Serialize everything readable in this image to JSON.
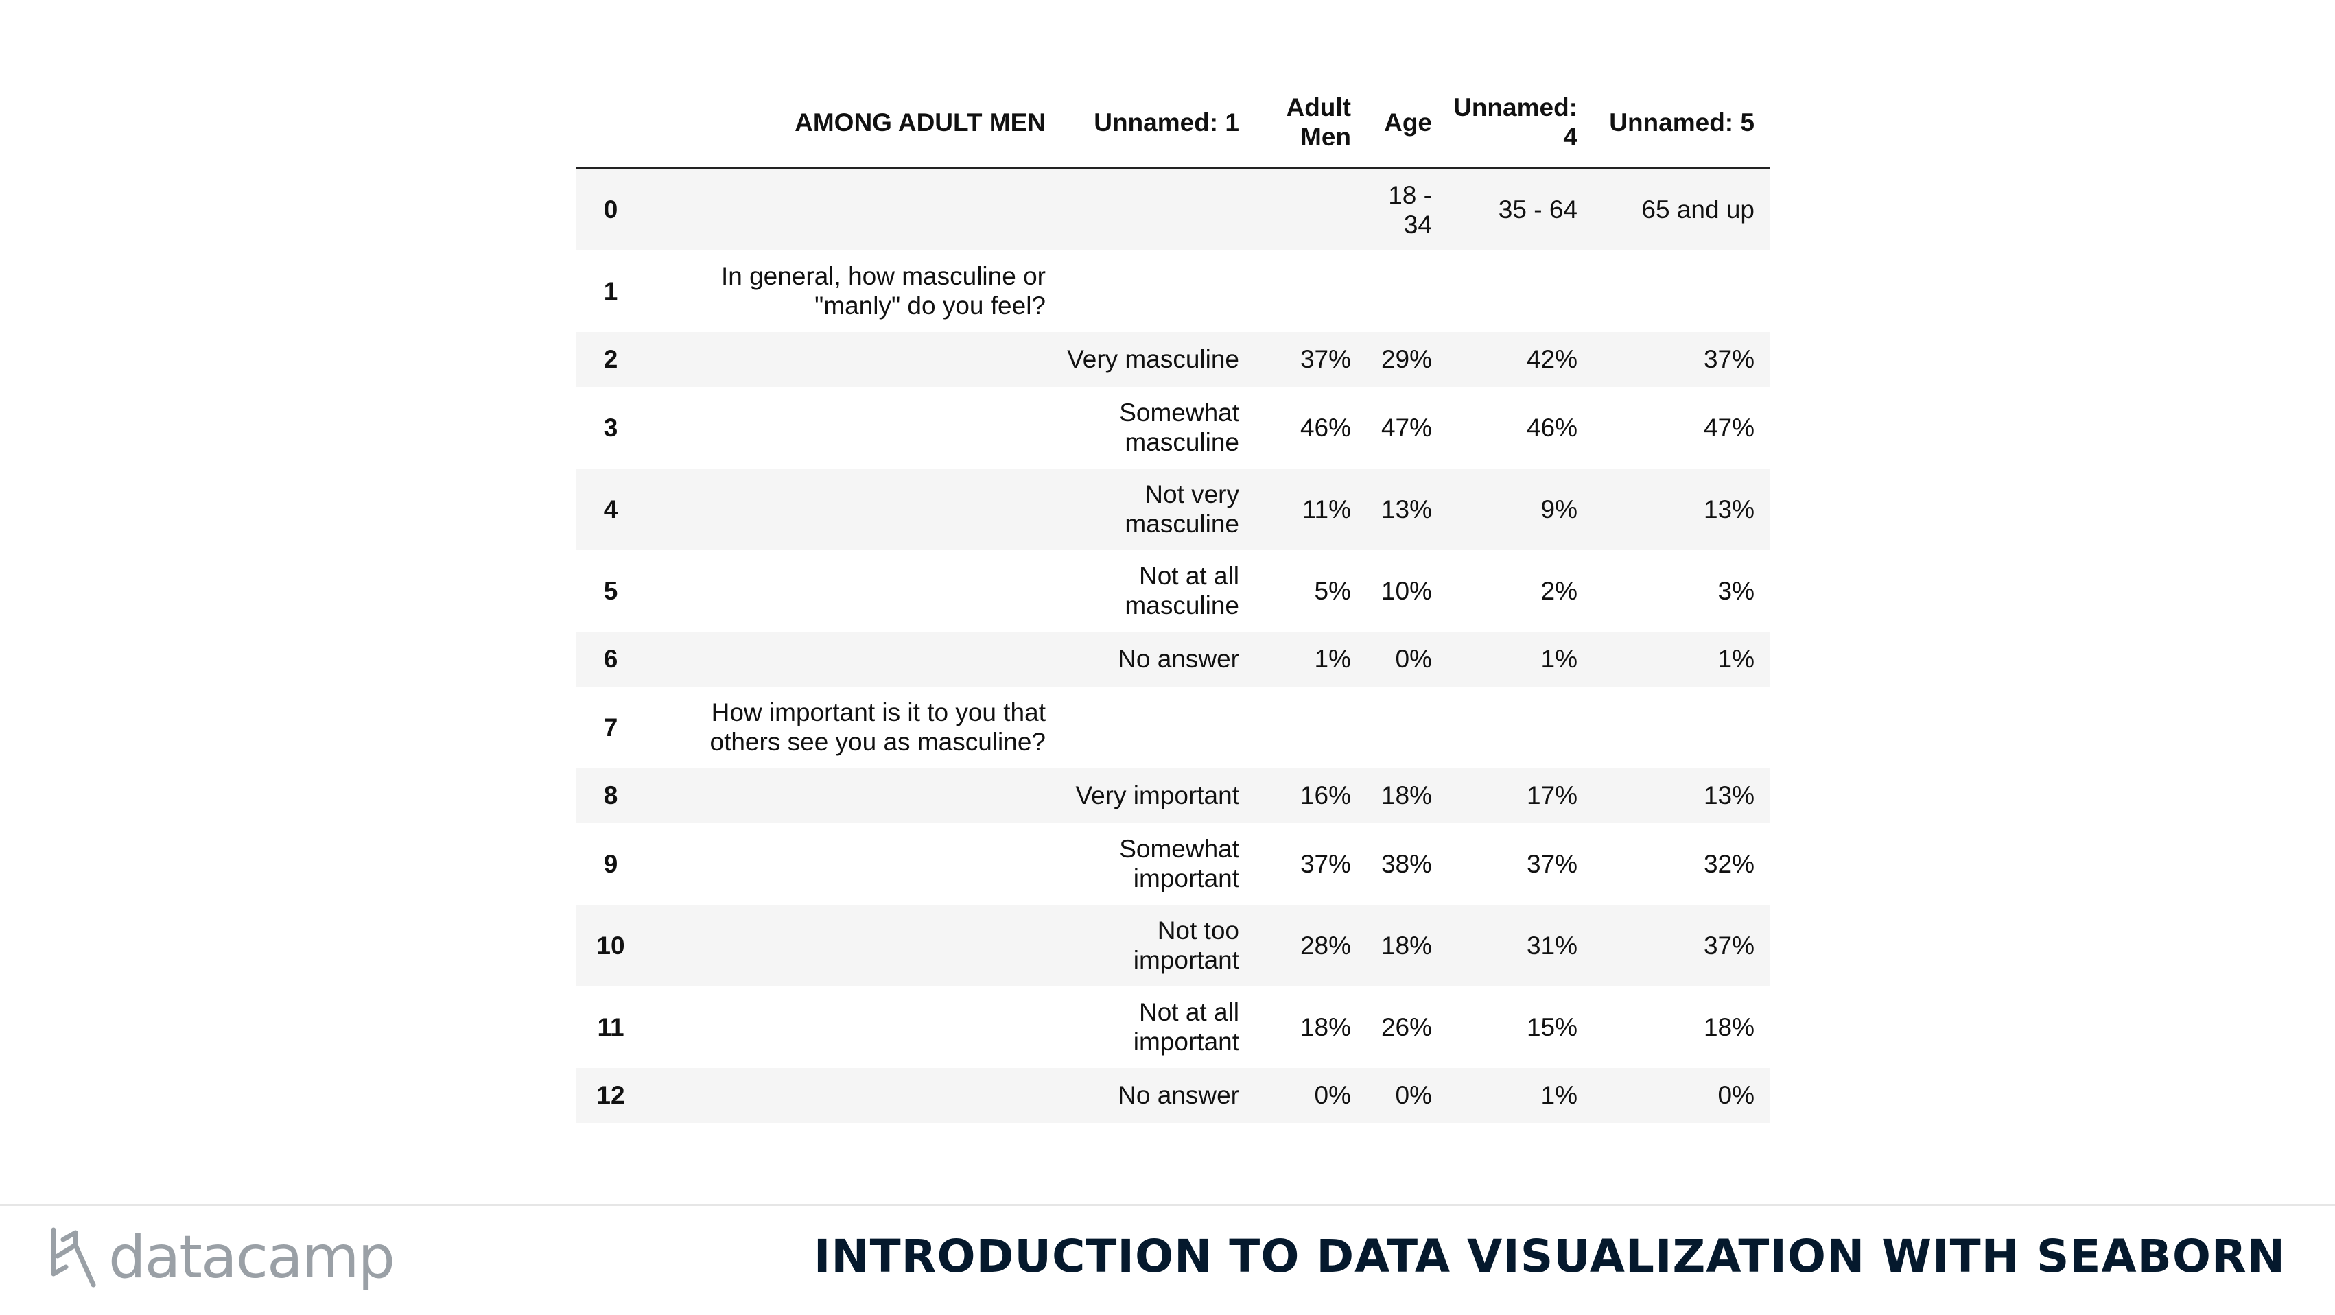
{
  "table": {
    "columns": [
      "",
      "AMONG ADULT MEN",
      "Unnamed: 1",
      "Adult Men",
      "Age",
      "Unnamed: 4",
      "Unnamed: 5"
    ],
    "rows": [
      {
        "index": "0",
        "cells": [
          "",
          "",
          "",
          "18 - 34",
          "35 - 64",
          "65 and up"
        ]
      },
      {
        "index": "1",
        "cells": [
          "In general, how masculine or \"manly\" do you feel?",
          "",
          "",
          "",
          "",
          ""
        ]
      },
      {
        "index": "2",
        "cells": [
          "",
          "Very masculine",
          "37%",
          "29%",
          "42%",
          "37%"
        ]
      },
      {
        "index": "3",
        "cells": [
          "",
          "Somewhat masculine",
          "46%",
          "47%",
          "46%",
          "47%"
        ]
      },
      {
        "index": "4",
        "cells": [
          "",
          "Not very masculine",
          "11%",
          "13%",
          "9%",
          "13%"
        ]
      },
      {
        "index": "5",
        "cells": [
          "",
          "Not at all masculine",
          "5%",
          "10%",
          "2%",
          "3%"
        ]
      },
      {
        "index": "6",
        "cells": [
          "",
          "No answer",
          "1%",
          "0%",
          "1%",
          "1%"
        ]
      },
      {
        "index": "7",
        "cells": [
          "How important is it to you that others see you as masculine?",
          "",
          "",
          "",
          "",
          ""
        ]
      },
      {
        "index": "8",
        "cells": [
          "",
          "Very important",
          "16%",
          "18%",
          "17%",
          "13%"
        ]
      },
      {
        "index": "9",
        "cells": [
          "",
          "Somewhat important",
          "37%",
          "38%",
          "37%",
          "32%"
        ]
      },
      {
        "index": "10",
        "cells": [
          "",
          "Not too important",
          "28%",
          "18%",
          "31%",
          "37%"
        ]
      },
      {
        "index": "11",
        "cells": [
          "",
          "Not at all important",
          "18%",
          "26%",
          "15%",
          "18%"
        ]
      },
      {
        "index": "12",
        "cells": [
          "",
          "No answer",
          "0%",
          "0%",
          "1%",
          "0%"
        ]
      }
    ]
  },
  "footer": {
    "logo_text": "datacamp",
    "course_title": "INTRODUCTION TO DATA VISUALIZATION WITH SEABORN",
    "logo_color": "#9aa0a6",
    "title_color": "#05192d"
  }
}
